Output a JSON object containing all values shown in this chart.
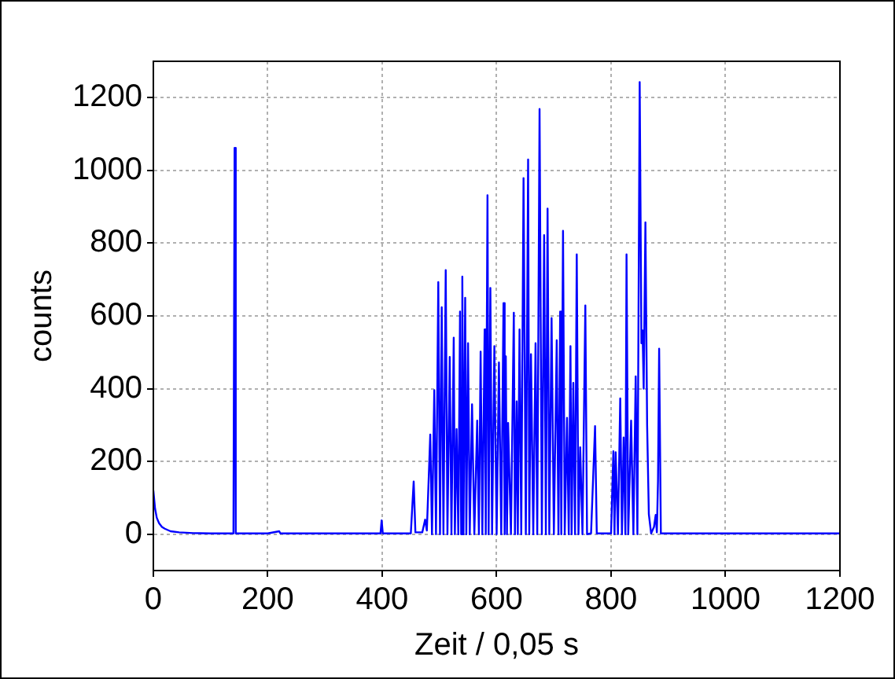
{
  "chart_data": {
    "type": "line",
    "xlabel": "Zeit / 0,05 s",
    "ylabel": "counts",
    "xlim": [
      0,
      1200
    ],
    "ylim": [
      -100,
      1300
    ],
    "xticks": [
      0,
      200,
      400,
      600,
      800,
      1000,
      1200
    ],
    "yticks": [
      0,
      200,
      400,
      600,
      800,
      1000,
      1200
    ],
    "grid": true,
    "marker": "none",
    "line_style": "solid",
    "x": [
      0,
      3,
      6,
      10,
      15,
      20,
      30,
      45,
      70,
      100,
      140,
      142,
      144,
      200,
      220,
      222,
      300,
      397,
      399,
      401,
      450,
      455,
      458,
      470,
      475,
      478,
      484,
      487,
      491,
      494,
      498,
      501,
      504,
      507,
      511,
      514,
      518,
      521,
      525,
      527,
      530,
      533,
      536,
      538,
      540,
      542,
      545,
      547,
      550,
      553,
      557,
      561,
      566,
      569,
      572,
      575,
      579,
      581,
      584,
      586,
      589,
      592,
      596,
      600,
      604,
      608,
      612,
      614,
      616,
      618,
      620,
      625,
      630,
      632,
      635,
      637,
      640,
      643,
      647,
      651,
      655,
      657,
      660,
      664,
      668,
      671,
      675,
      679,
      683,
      686,
      689,
      692,
      696,
      700,
      705,
      708,
      711,
      713,
      716,
      719,
      723,
      726,
      729,
      731,
      734,
      737,
      740,
      743,
      746,
      750,
      755,
      758,
      765,
      772,
      775,
      800,
      804,
      806,
      808,
      812,
      816,
      819,
      822,
      825,
      827,
      830,
      835,
      839,
      843,
      846,
      850,
      853,
      855,
      857,
      860,
      863,
      866,
      870,
      875,
      878,
      880,
      882,
      884,
      887,
      900,
      1000,
      1100,
      1200
    ],
    "series": [
      {
        "color": "#0000ff",
        "values": [
          120,
          70,
          45,
          30,
          20,
          15,
          8,
          5,
          3,
          2,
          2,
          1062,
          2,
          2,
          8,
          2,
          2,
          2,
          38,
          2,
          2,
          145,
          5,
          5,
          40,
          10,
          274,
          0,
          396,
          0,
          693,
          0,
          624,
          0,
          726,
          0,
          487,
          0,
          540,
          0,
          289,
          0,
          612,
          0,
          708,
          0,
          650,
          0,
          525,
          0,
          357,
          0,
          312,
          0,
          502,
          0,
          563,
          0,
          932,
          0,
          677,
          0,
          517,
          0,
          472,
          0,
          635,
          0,
          489,
          0,
          306,
          0,
          609,
          0,
          365,
          0,
          563,
          0,
          979,
          0,
          1030,
          0,
          495,
          0,
          525,
          0,
          1169,
          0,
          822,
          0,
          895,
          0,
          594,
          0,
          533,
          0,
          612,
          0,
          834,
          0,
          320,
          0,
          517,
          0,
          416,
          0,
          769,
          0,
          239,
          0,
          629,
          0,
          2,
          297,
          2,
          2,
          228,
          0,
          225,
          0,
          373,
          0,
          266,
          0,
          769,
          0,
          312,
          0,
          434,
          0,
          1243,
          525,
          560,
          400,
          857,
          300,
          55,
          2,
          20,
          53,
          5,
          146,
          510,
          2,
          2,
          2,
          2,
          2
        ]
      }
    ]
  }
}
